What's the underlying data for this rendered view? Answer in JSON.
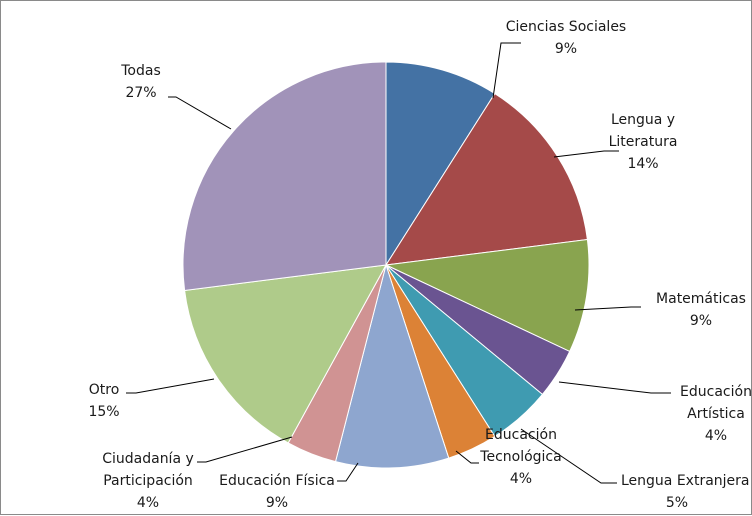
{
  "chart_data": {
    "type": "pie",
    "title": "",
    "start_angle_deg": 0,
    "direction": "clockwise",
    "slices": [
      {
        "label": "Ciencias Sociales",
        "value": 9,
        "value_label": "9%",
        "color": "#4472a4"
      },
      {
        "label": "Lengua y Literatura",
        "value": 14,
        "value_label": "14%",
        "color": "#a54a49"
      },
      {
        "label": "Matemáticas",
        "value": 9,
        "value_label": "9%",
        "color": "#89a44f"
      },
      {
        "label": "Educación Artística",
        "value": 4,
        "value_label": "4%",
        "color": "#6a5491"
      },
      {
        "label": "Lengua Extranjera",
        "value": 5,
        "value_label": "5%",
        "color": "#3f9bb1"
      },
      {
        "label": "Educación Tecnológica",
        "value": 4,
        "value_label": "4%",
        "color": "#dc8236"
      },
      {
        "label": "Educación Física",
        "value": 9,
        "value_label": "9%",
        "color": "#8ea6cf"
      },
      {
        "label": "Ciudadanía y Participación",
        "value": 4,
        "value_label": "4%",
        "color": "#d09393"
      },
      {
        "label": "Otro",
        "value": 15,
        "value_label": "15%",
        "color": "#afcb8a"
      },
      {
        "label": "Todas",
        "value": 27,
        "value_label": "27%",
        "color": "#a193b9"
      }
    ],
    "legend": "none",
    "data_labels": "category name and percentage, with leader lines"
  }
}
